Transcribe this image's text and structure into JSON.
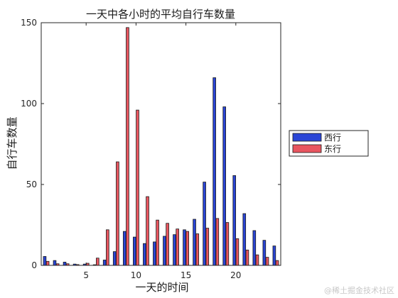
{
  "chart_data": {
    "type": "bar",
    "title": "一天中各小时的平均自行车数量",
    "xlabel": "一天的时间",
    "ylabel": "自行车数量",
    "xlim": [
      0.5,
      24.5
    ],
    "ylim": [
      0,
      150
    ],
    "xticks": [
      5,
      10,
      15,
      20
    ],
    "yticks": [
      0,
      50,
      100,
      150
    ],
    "categories": [
      1,
      2,
      3,
      4,
      5,
      6,
      7,
      8,
      9,
      10,
      11,
      12,
      13,
      14,
      15,
      16,
      17,
      18,
      19,
      20,
      21,
      22,
      23,
      24
    ],
    "series": [
      {
        "name": "西行",
        "color": "#2a45d6",
        "values": [
          5.5,
          3,
          2,
          0.8,
          0.8,
          0.4,
          3.3,
          8.5,
          21,
          17.5,
          13.5,
          14.5,
          18,
          19,
          22,
          28.5,
          51.5,
          116,
          98,
          55.5,
          32,
          21.5,
          15.5,
          12
        ]
      },
      {
        "name": "东行",
        "color": "#e8555f",
        "values": [
          2.5,
          1,
          1,
          0.5,
          1.3,
          4.5,
          22,
          64,
          147,
          96,
          42.5,
          28,
          26,
          22.5,
          21,
          19.5,
          23,
          29,
          26.5,
          16.5,
          9.5,
          6.5,
          5,
          3
        ]
      }
    ],
    "legend": {
      "position": "outside-right"
    },
    "grid": false
  },
  "watermark": "@稀土掘金技术社区"
}
